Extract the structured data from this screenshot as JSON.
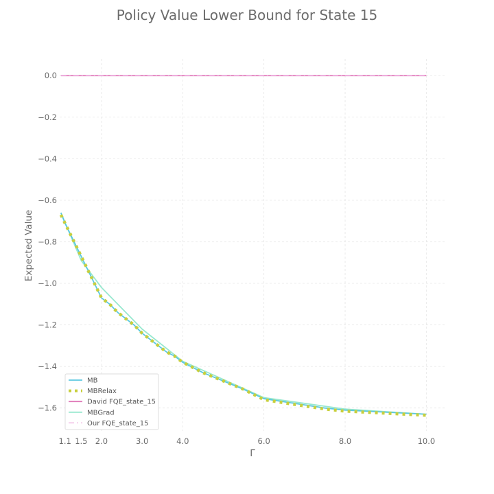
{
  "chart_data": {
    "type": "line",
    "title": "Policy Value Lower Bound for State 15",
    "xlabel": "Γ",
    "ylabel": "Expected Value",
    "xlim": [
      0.97,
      10.45
    ],
    "ylim": [
      -1.71,
      0.08
    ],
    "xticks": [
      1.1,
      1.5,
      2.0,
      3.0,
      4.0,
      6.0,
      8.0,
      10.0
    ],
    "xtick_labels": [
      "1.1",
      "1.5",
      "2.0",
      "3.0",
      "4.0",
      "6.0",
      "8.0",
      "10.0"
    ],
    "yticks": [
      0.0,
      -0.2,
      -0.4,
      -0.6,
      -0.8,
      -1.0,
      -1.2,
      -1.4,
      -1.6
    ],
    "ytick_labels": [
      "0.0",
      "−0.2",
      "−0.4",
      "−0.6",
      "−0.8",
      "−1.0",
      "−1.2",
      "−1.4",
      "−1.6"
    ],
    "grid": true,
    "legend_position": "lower-left",
    "series": [
      {
        "name": "MB",
        "color": "#5bc8e0",
        "style": "solid",
        "x": [
          1.0,
          1.1,
          1.2,
          1.3,
          1.4,
          1.5,
          1.6,
          1.7,
          1.8,
          1.9,
          2.0,
          2.2,
          2.4,
          2.6,
          2.8,
          3.0,
          3.2,
          3.4,
          3.6,
          3.8,
          4.0,
          4.5,
          5.0,
          5.5,
          6.0,
          6.5,
          7.0,
          7.5,
          8.0,
          8.5,
          9.0,
          9.5,
          10.0
        ],
        "y": [
          -0.66,
          -0.71,
          -0.75,
          -0.79,
          -0.83,
          -0.87,
          -0.91,
          -0.95,
          -0.99,
          -1.03,
          -1.07,
          -1.1,
          -1.14,
          -1.17,
          -1.2,
          -1.24,
          -1.27,
          -1.3,
          -1.33,
          -1.35,
          -1.38,
          -1.43,
          -1.47,
          -1.51,
          -1.555,
          -1.57,
          -1.585,
          -1.6,
          -1.61,
          -1.615,
          -1.62,
          -1.625,
          -1.63
        ]
      },
      {
        "name": "MBRelax",
        "color": "#c8cf3c",
        "style": "dotted",
        "x": [
          1.0,
          1.1,
          1.2,
          1.3,
          1.4,
          1.5,
          1.6,
          1.7,
          1.8,
          1.9,
          2.0,
          2.2,
          2.4,
          2.6,
          2.8,
          3.0,
          3.2,
          3.4,
          3.6,
          3.8,
          4.0,
          4.5,
          5.0,
          5.5,
          6.0,
          6.5,
          7.0,
          7.5,
          8.0,
          8.5,
          9.0,
          9.5,
          10.0
        ],
        "y": [
          -0.67,
          -0.71,
          -0.75,
          -0.79,
          -0.83,
          -0.87,
          -0.91,
          -0.95,
          -0.99,
          -1.03,
          -1.07,
          -1.1,
          -1.14,
          -1.17,
          -1.2,
          -1.24,
          -1.27,
          -1.3,
          -1.33,
          -1.35,
          -1.38,
          -1.43,
          -1.47,
          -1.51,
          -1.56,
          -1.575,
          -1.59,
          -1.605,
          -1.615,
          -1.62,
          -1.625,
          -1.63,
          -1.635
        ]
      },
      {
        "name": "David FQE_state_15",
        "color": "#e07ab8",
        "style": "solid",
        "x": [
          1.0,
          10.0
        ],
        "y": [
          0.0,
          0.0
        ]
      },
      {
        "name": "MBGrad",
        "color": "#98e8cf",
        "style": "solid",
        "x": [
          1.0,
          1.5,
          2.0,
          3.0,
          4.0,
          6.0,
          8.0,
          10.0
        ],
        "y": [
          -0.66,
          -0.89,
          -1.02,
          -1.22,
          -1.375,
          -1.55,
          -1.605,
          -1.63
        ]
      },
      {
        "name": "Our FQE_state_15",
        "color": "#eca8de",
        "style": "dashdot",
        "x": [
          1.0,
          10.0
        ],
        "y": [
          0.0,
          0.0
        ]
      }
    ]
  }
}
